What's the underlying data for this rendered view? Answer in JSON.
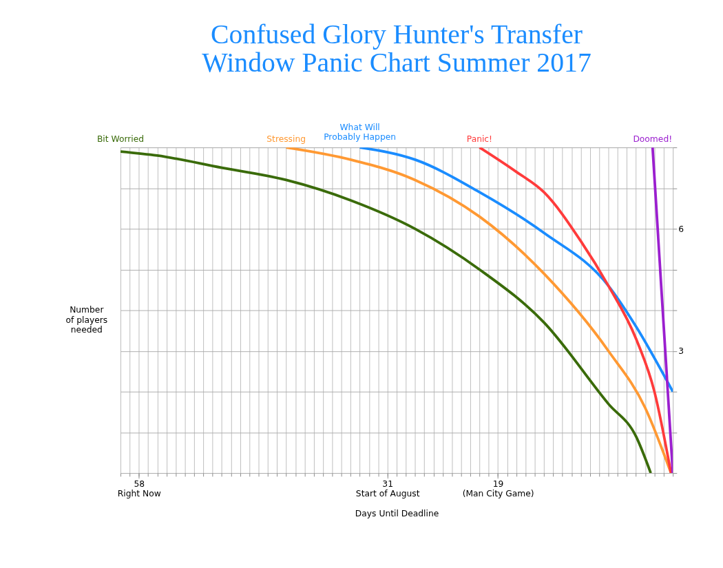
{
  "chart_data": {
    "type": "line",
    "title": "Confused Glory Hunter's Transfer\nWindow Panic Chart Summer 2017",
    "xlabel": "Days Until Deadline",
    "ylabel": "Number\nof players\nneeded",
    "xlim": [
      60,
      0
    ],
    "ylim": [
      0,
      8
    ],
    "xticks": [
      {
        "value": 58,
        "label": "58\nRight Now"
      },
      {
        "value": 31,
        "label": "31\nStart of August"
      },
      {
        "value": 19,
        "label": "19\n(Man City Game)"
      }
    ],
    "yticks": [
      {
        "value": 0,
        "label": null
      },
      {
        "value": 1,
        "label": null
      },
      {
        "value": 2,
        "label": null
      },
      3,
      {
        "value": 4,
        "label": null
      },
      {
        "value": 5,
        "label": null
      },
      6,
      {
        "value": 7,
        "label": null
      },
      {
        "value": 8,
        "label": null
      }
    ],
    "grid": true,
    "legend": false,
    "series": [
      {
        "name": "Bit Worried",
        "color": "#3a6b0a",
        "x": [
          60,
          56,
          49,
          42,
          35,
          28,
          21,
          14,
          7,
          4,
          2.4
        ],
        "values": [
          7.9,
          7.8,
          7.5,
          7.2,
          6.7,
          6.0,
          5.0,
          3.7,
          1.7,
          0.9,
          0
        ]
      },
      {
        "name": "Stressing",
        "color": "#ff9933",
        "x": [
          42,
          35,
          28,
          21,
          14,
          7,
          3,
          0.2
        ],
        "values": [
          8,
          7.7,
          7.2,
          6.3,
          4.9,
          3.0,
          1.6,
          0
        ]
      },
      {
        "name": "What Will\nProbably Happen",
        "color": "#1a8cff",
        "x": [
          34,
          28,
          21,
          14,
          7,
          4,
          0
        ],
        "values": [
          8,
          7.7,
          6.9,
          5.9,
          4.6,
          3.6,
          2
        ]
      },
      {
        "name": "Panic!",
        "color": "#ff3b3b",
        "x": [
          21,
          17,
          14,
          10,
          7,
          4,
          2,
          0.2
        ],
        "values": [
          8,
          7.4,
          6.9,
          5.7,
          4.6,
          3.3,
          2.0,
          0
        ]
      },
      {
        "name": "Doomed!",
        "color": "#9b1fcf",
        "x": [
          2.2,
          0
        ],
        "values": [
          8,
          0
        ]
      }
    ]
  }
}
